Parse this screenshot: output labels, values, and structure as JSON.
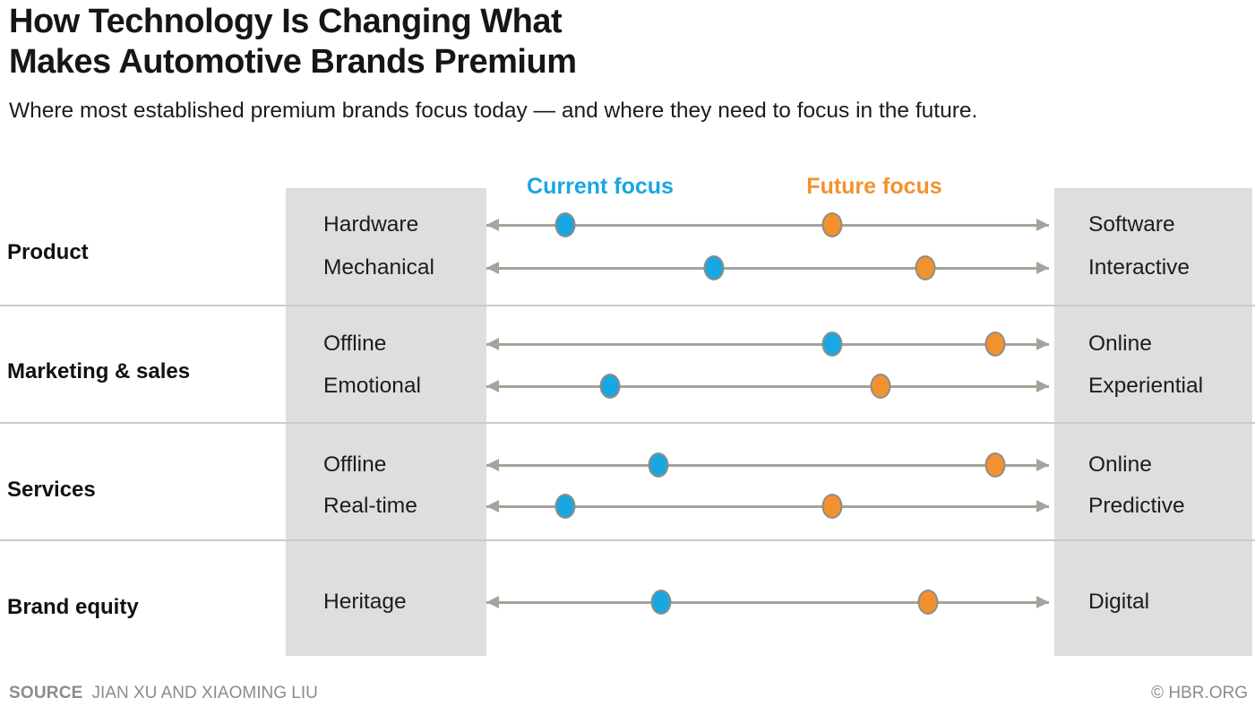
{
  "header": {
    "title_line1": "How Technology Is Changing What",
    "title_line2": "Makes Automotive Brands Premium",
    "subtitle": "Where most established premium brands focus today — and where they need to focus in the future."
  },
  "footer": {
    "source_label": "SOURCE",
    "source_value": "JIAN XU AND XIAOMING LIU",
    "credit": "© HBR.ORG"
  },
  "colors": {
    "current_focus": "#18a7e2",
    "future_focus": "#f2922e",
    "arrow_gray": "#a6a39b",
    "panel_gray": "#dedede",
    "divider_gray": "#cbcbcb",
    "dot_border": "#8f8d86",
    "footer_text": "#8c8c8c"
  },
  "chart_data": {
    "type": "dumbbell",
    "title": "How Technology Is Changing What Makes Automotive Brands Premium",
    "subtitle": "Where most established premium brands focus today — and where they need to focus in the future.",
    "legend": [
      {
        "label": "Current focus",
        "color": "#18a7e2"
      },
      {
        "label": "Future focus",
        "color": "#f2922e"
      }
    ],
    "axis_note": "Each row is a double-headed arrow from a traditional attribute (left, 0%) to a tech-driven attribute (right, 100%); dot positions estimated as % along the arrow.",
    "legend_position": "top",
    "groups": [
      {
        "category": "Product",
        "rows": [
          {
            "left": "Hardware",
            "right": "Software",
            "current": 14,
            "future": 61.5
          },
          {
            "left": "Mechanical",
            "right": "Interactive",
            "current": 40.5,
            "future": 78
          }
        ]
      },
      {
        "category": "Marketing & sales",
        "rows": [
          {
            "left": "Offline",
            "right": "Online",
            "current": 61.5,
            "future": 90.5
          },
          {
            "left": "Emotional",
            "right": "Experiential",
            "current": 22,
            "future": 70
          }
        ]
      },
      {
        "category": "Services",
        "rows": [
          {
            "left": "Offline",
            "right": "Online",
            "current": 30.5,
            "future": 90.5
          },
          {
            "left": "Real-time",
            "right": "Predictive",
            "current": 14,
            "future": 61.5
          }
        ]
      },
      {
        "category": "Brand equity",
        "rows": [
          {
            "left": "Heritage",
            "right": "Digital",
            "current": 31,
            "future": 78.5
          }
        ]
      }
    ]
  }
}
